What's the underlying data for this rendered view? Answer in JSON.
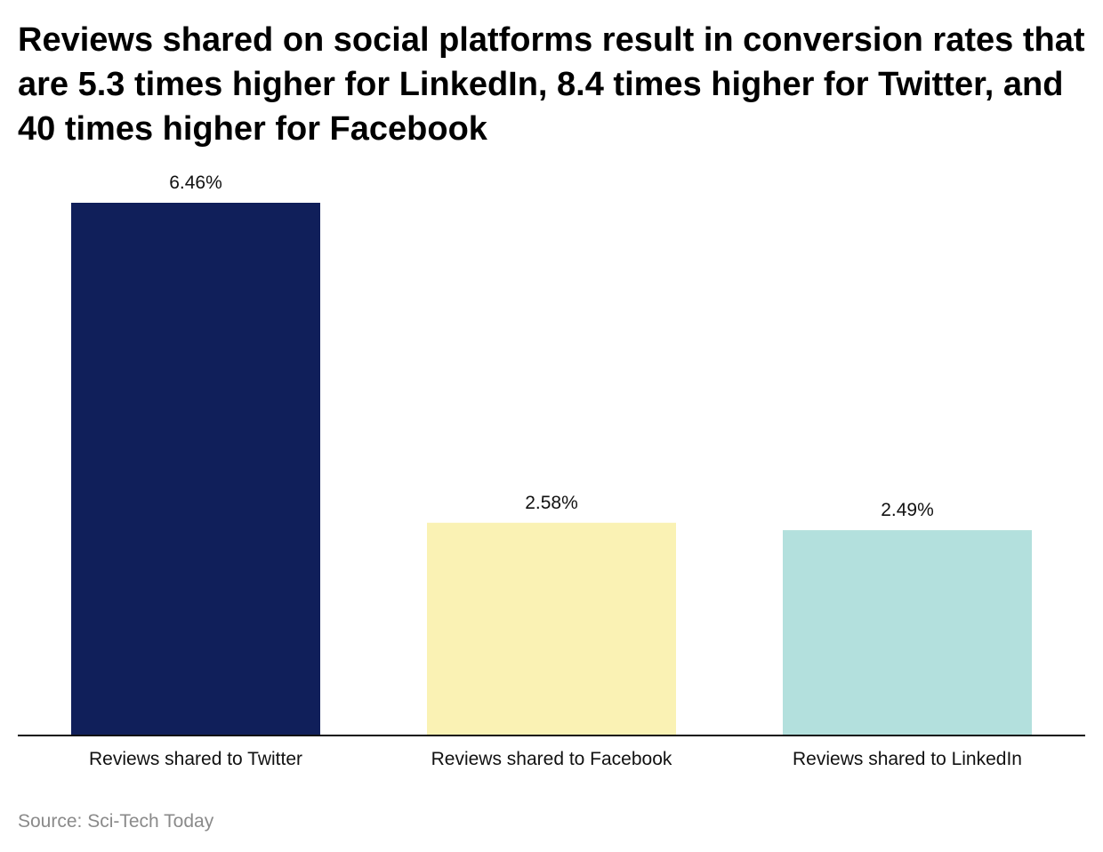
{
  "chart_data": {
    "type": "bar",
    "title": "Reviews shared on social platforms result in conversion rates that are 5.3 times higher for LinkedIn, 8.4 times higher for Twitter, and 40 times higher for Facebook",
    "categories": [
      "Reviews shared to Twitter",
      "Reviews shared to Facebook",
      "Reviews shared to LinkedIn"
    ],
    "values": [
      6.46,
      2.58,
      2.49
    ],
    "value_labels": [
      "6.46%",
      "2.58%",
      "2.49%"
    ],
    "colors": [
      "#101f5a",
      "#faf2b4",
      "#b3e0dd"
    ],
    "xlabel": "",
    "ylabel": "",
    "ylim": [
      0,
      6.46
    ],
    "grid": false,
    "legend": "none"
  },
  "source": "Source: Sci-Tech Today"
}
